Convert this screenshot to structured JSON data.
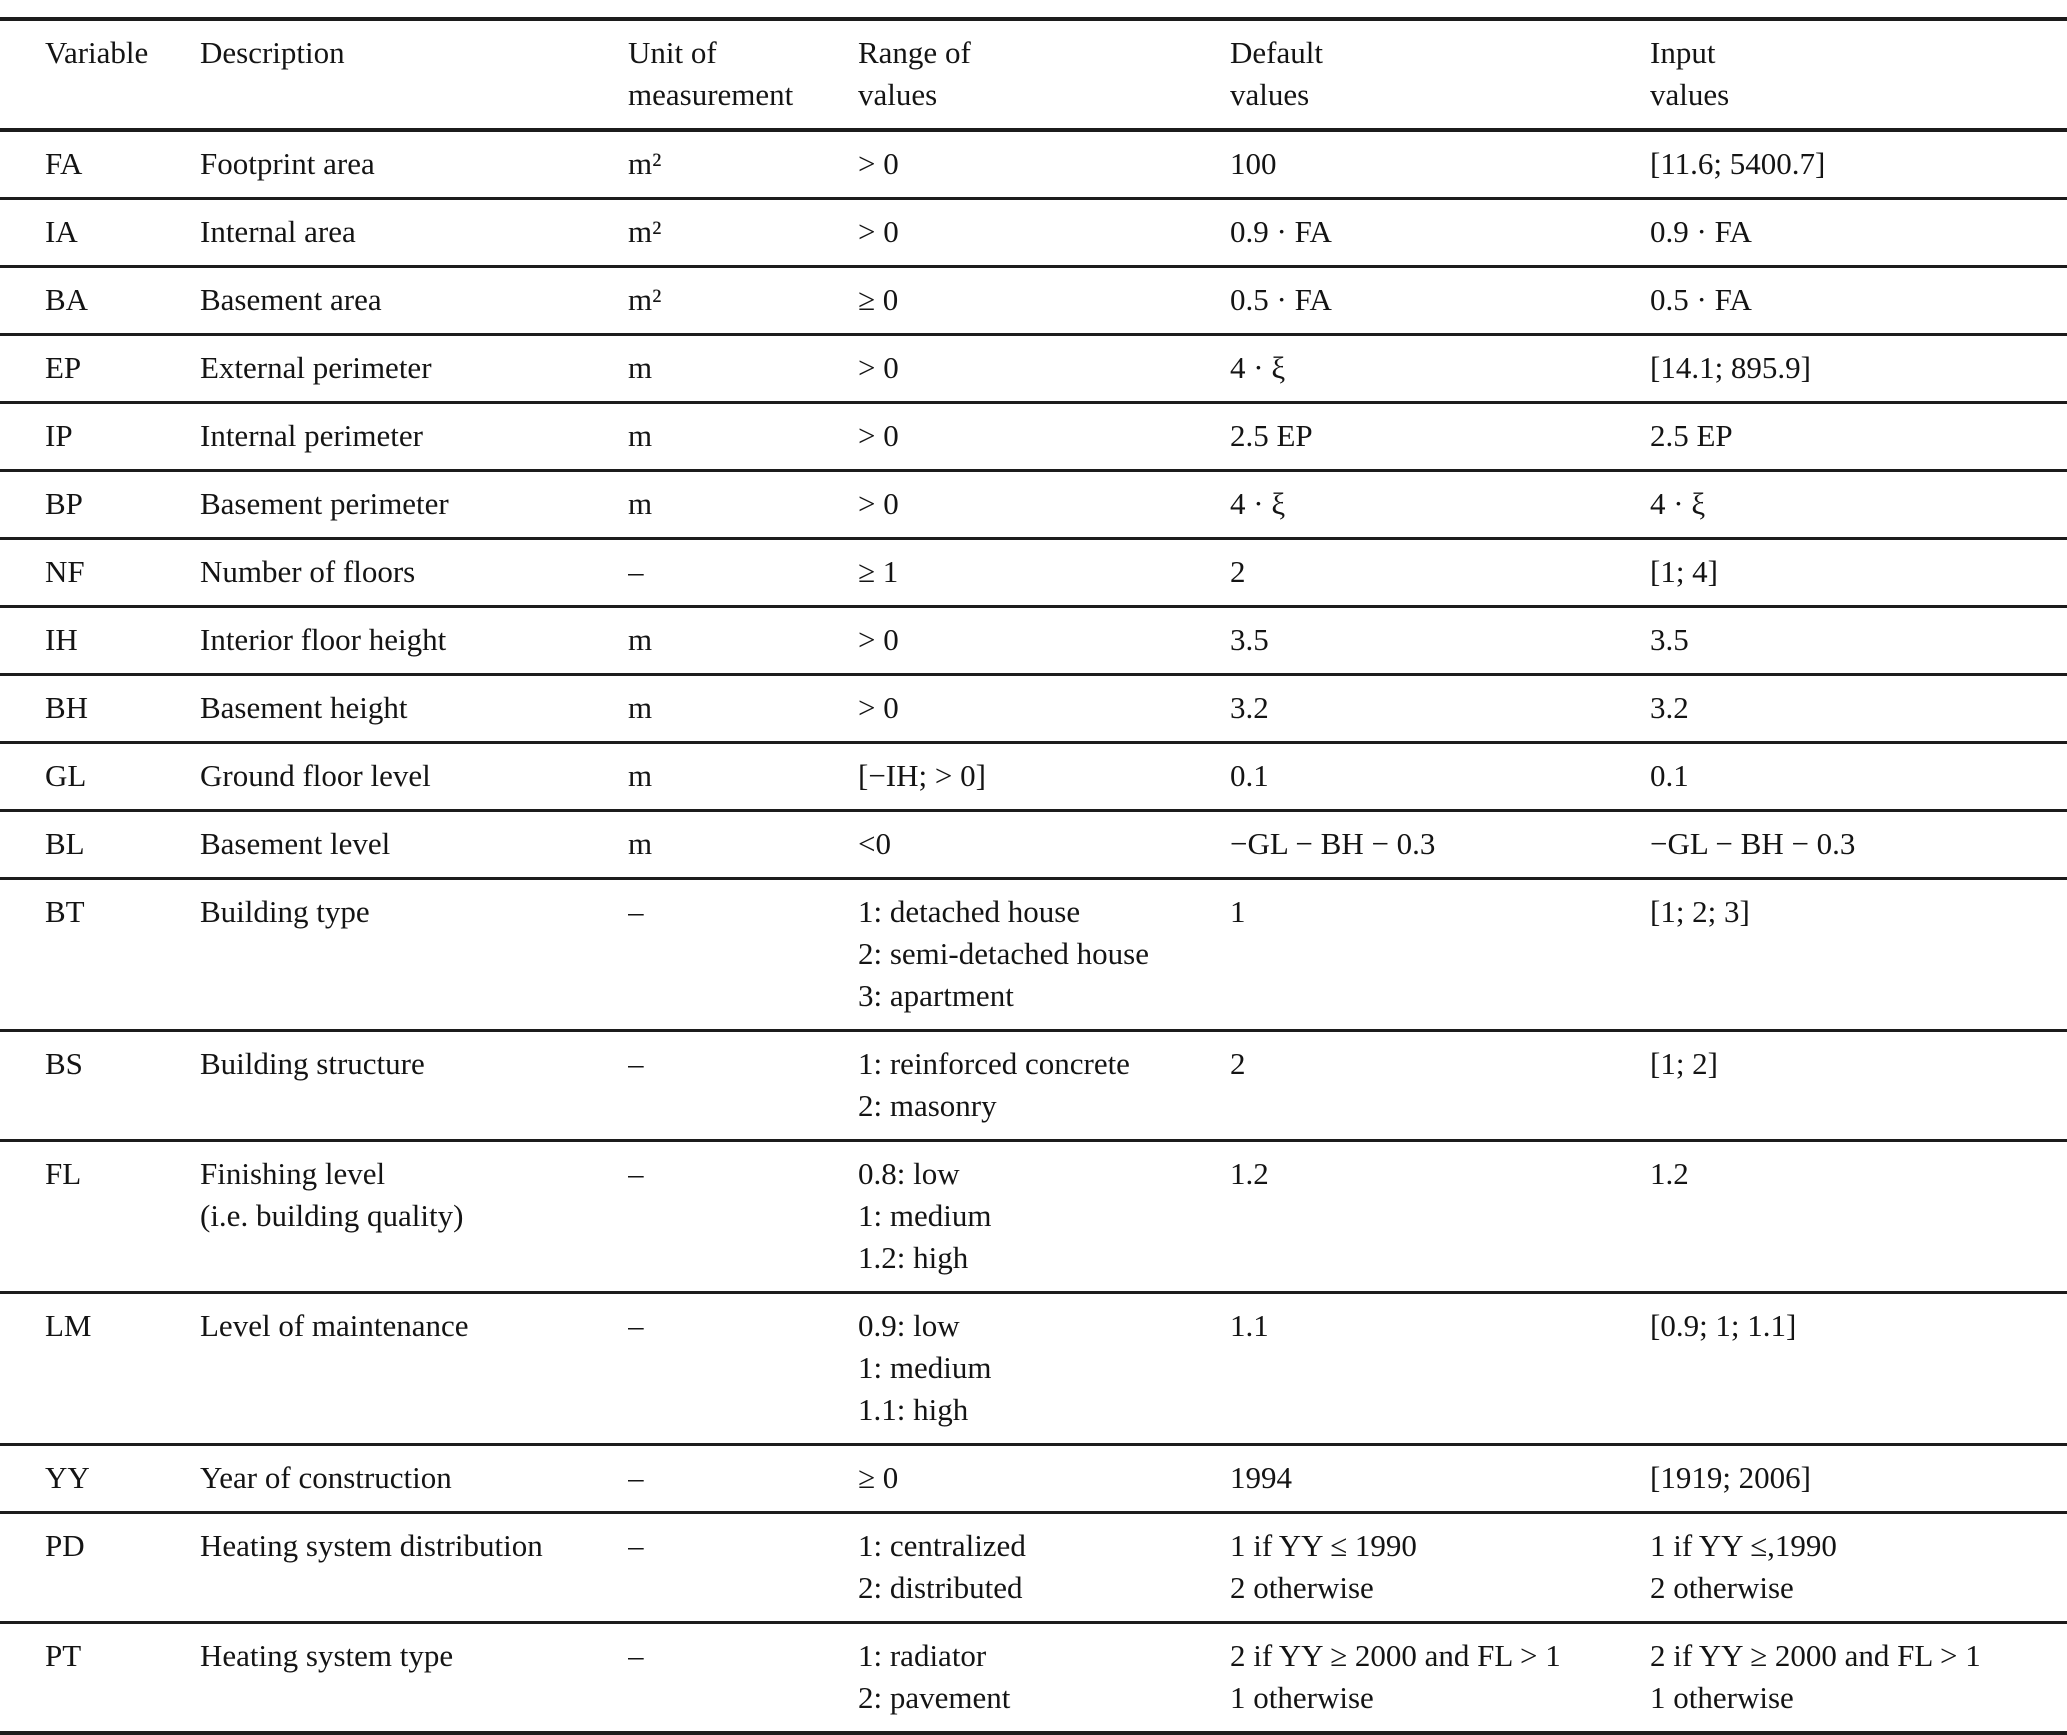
{
  "page": {
    "background_color": "#ffffff",
    "text_color": "#141414",
    "rule_color": "#1c1c1c"
  },
  "table": {
    "columns": [
      "Variable",
      "Description",
      "Unit of\nmeasurement",
      "Range of\nvalues",
      "Default\nvalues",
      "Input\nvalues"
    ],
    "rows": [
      {
        "cells": [
          "FA",
          "Footprint area",
          "m²",
          "> 0",
          "100",
          "[11.6; 5400.7]"
        ]
      },
      {
        "cells": [
          "IA",
          "Internal area",
          "m²",
          "> 0",
          "0.9 · FA",
          "0.9 · FA"
        ]
      },
      {
        "cells": [
          "BA",
          "Basement area",
          "m²",
          "≥ 0",
          "0.5 · FA",
          "0.5 · FA"
        ]
      },
      {
        "cells": [
          "EP",
          "External perimeter",
          "m",
          "> 0",
          "4 · ξ",
          "[14.1; 895.9]"
        ]
      },
      {
        "cells": [
          "IP",
          "Internal perimeter",
          "m",
          "> 0",
          "2.5 EP",
          "2.5 EP"
        ]
      },
      {
        "cells": [
          "BP",
          "Basement perimeter",
          "m",
          "> 0",
          "4 · ξ",
          "4 · ξ"
        ]
      },
      {
        "cells": [
          "NF",
          "Number of floors",
          "–",
          "≥ 1",
          "2",
          "[1; 4]"
        ]
      },
      {
        "cells": [
          "IH",
          "Interior floor height",
          "m",
          "> 0",
          "3.5",
          "3.5"
        ]
      },
      {
        "cells": [
          "BH",
          "Basement height",
          "m",
          "> 0",
          "3.2",
          "3.2"
        ]
      },
      {
        "cells": [
          "GL",
          "Ground floor level",
          "m",
          "[−IH; > 0]",
          "0.1",
          "0.1"
        ]
      },
      {
        "cells": [
          "BL",
          "Basement level",
          "m",
          "<0",
          "−GL − BH − 0.3",
          "−GL − BH − 0.3"
        ]
      },
      {
        "cells": [
          "BT",
          "Building type",
          "–",
          "1: detached house\n2: semi-detached house\n3: apartment",
          "1",
          "[1; 2; 3]"
        ]
      },
      {
        "cells": [
          "BS",
          "Building structure",
          "–",
          "1: reinforced concrete\n2: masonry",
          "2",
          "[1; 2]"
        ]
      },
      {
        "cells": [
          "FL",
          "Finishing level\n(i.e. building quality)",
          "–",
          "0.8: low\n1: medium\n1.2: high",
          "1.2",
          "1.2"
        ]
      },
      {
        "cells": [
          "LM",
          "Level of maintenance",
          "–",
          "0.9: low\n1: medium\n1.1: high",
          "1.1",
          "[0.9; 1; 1.1]"
        ]
      },
      {
        "cells": [
          "YY",
          "Year of construction",
          "–",
          "≥ 0",
          "1994",
          "[1919; 2006]"
        ]
      },
      {
        "cells": [
          "PD",
          "Heating system distribution",
          "–",
          "1: centralized\n2: distributed",
          "1 if YY ≤ 1990\n2 otherwise",
          "1 if YY ≤,1990\n2 otherwise"
        ]
      },
      {
        "cells": [
          "PT",
          "Heating system type",
          "–",
          "1: radiator\n2: pavement",
          "2 if YY ≥ 2000 and FL > 1\n1 otherwise",
          "2 if YY ≥ 2000 and FL > 1\n1 otherwise"
        ]
      }
    ]
  }
}
